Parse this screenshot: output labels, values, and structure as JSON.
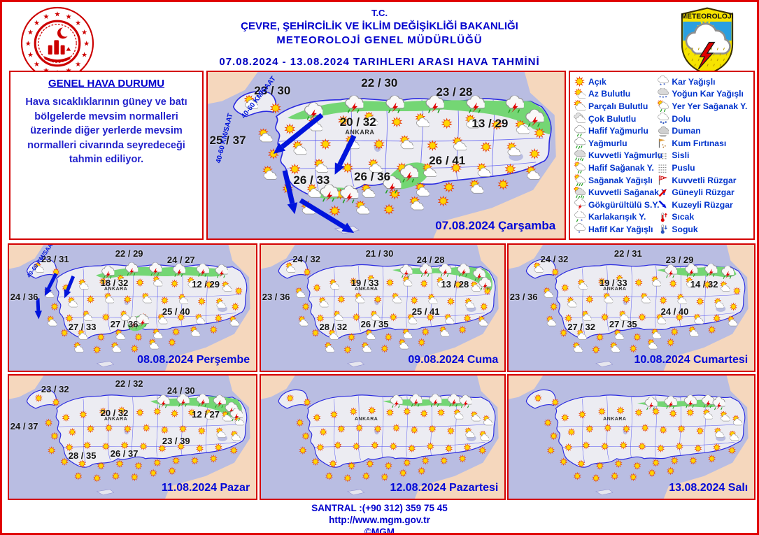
{
  "header": {
    "tc": "T.C.",
    "ministry": "ÇEVRE, ŞEHİRCİLİK VE İKLİM DEĞİŞİKLİĞİ BAKANLIĞI",
    "directorate": "METEOROLOJİ  GENEL  MÜDÜRLÜĞÜ",
    "date_title": "07.08.2024  -  13.08.2024    TARIHLERI  ARASI  HAVA  TAHMİNİ",
    "right_logo_text": "METEOROLOJİ"
  },
  "general_panel": {
    "title": "GENEL HAVA DURUMU",
    "body": "Hava sıcaklıklarının güney ve batı bölgelerde mevsim normalleri üzerinde diğer yerlerde mevsim normalleri civarında seyredeceği tahmin ediliyor."
  },
  "legend": {
    "col1": [
      {
        "icon": "sun",
        "label": "Açık"
      },
      {
        "icon": "sun-small-cloud",
        "label": "Az Bulutlu"
      },
      {
        "icon": "sun-cloud",
        "label": "Parçalı Bulutlu"
      },
      {
        "icon": "clouds",
        "label": "Çok Bulutlu"
      },
      {
        "icon": "light-rain",
        "label": "Hafif Yağmurlu"
      },
      {
        "icon": "rain",
        "label": "Yağmurlu"
      },
      {
        "icon": "heavy-rain",
        "label": "Kuvvetli Yağmurlu"
      },
      {
        "icon": "light-shower",
        "label": "Hafif Sağanak Y."
      },
      {
        "icon": "shower",
        "label": "Sağanak Yağışlı"
      },
      {
        "icon": "heavy-shower",
        "label": "Kuvvetli Sağanak Y"
      },
      {
        "icon": "thunderstorm",
        "label": "Gökgürültülü S.Y."
      },
      {
        "icon": "sleet",
        "label": "Karlakarışık Y."
      },
      {
        "icon": "light-snow",
        "label": "Hafif Kar Yağışlı"
      }
    ],
    "col2": [
      {
        "icon": "snow",
        "label": "Kar Yağışlı"
      },
      {
        "icon": "heavy-snow",
        "label": "Yoğun Kar Yağışlı"
      },
      {
        "icon": "local-shower",
        "label": "Yer Yer Sağanak Y."
      },
      {
        "icon": "hail",
        "label": "Dolu"
      },
      {
        "icon": "smoke",
        "label": "Duman"
      },
      {
        "icon": "sandstorm",
        "label": "Kum Fırtınası"
      },
      {
        "icon": "fog",
        "label": "Sisli"
      },
      {
        "icon": "haze",
        "label": "Puslu"
      },
      {
        "icon": "strong-wind",
        "label": "Kuvvetli Rüzgar"
      },
      {
        "icon": "south-wind",
        "label": "Güneyli Rüzgar"
      },
      {
        "icon": "north-wind",
        "label": "Kuzeyli Rüzgar"
      },
      {
        "icon": "hot",
        "label": "Sıcak"
      },
      {
        "icon": "cold",
        "label": "Soguk"
      }
    ]
  },
  "maps": {
    "carsamba": {
      "date_label": "07.08.2024 Çarşamba",
      "wind_label": "40-60 KM/SAAT",
      "ankara_label": "ANKARA",
      "temps": {
        "nw": "23 / 30",
        "n": "22 / 30",
        "ne": "23 / 28",
        "ankara": "20 / 32",
        "east": "13 / 29",
        "west": "25 / 37",
        "south": "26 / 33",
        "south_center": "26 / 36",
        "southeast": "26 / 41"
      }
    },
    "persembe": {
      "date_label": "08.08.2024 Perşembe",
      "wind_label": "40-60 KM/SAAT",
      "ankara_label": "ANKARA",
      "temps": {
        "nw": "23 / 31",
        "n": "22 / 29",
        "ne": "24 / 27",
        "ankara": "18 / 32",
        "east": "12 / 29",
        "west": "24 / 36",
        "south": "27 / 33",
        "south_center": "27 / 36",
        "southeast": "25 / 40"
      }
    },
    "cuma": {
      "date_label": "09.08.2024 Cuma",
      "ankara_label": "ANKARA",
      "temps": {
        "nw": "24 / 32",
        "n": "21 / 30",
        "ne": "24 / 28",
        "ankara": "19 / 33",
        "east": "13 / 28",
        "west": "23 / 36",
        "south": "28 / 32",
        "south_center": "26 / 35",
        "southeast": "25 / 41"
      }
    },
    "cumartesi": {
      "date_label": "10.08.2024 Cumartesi",
      "ankara_label": "ANKARA",
      "temps": {
        "nw": "24 / 32",
        "n": "22 / 31",
        "ne": "23 / 29",
        "ankara": "19 / 33",
        "east": "14 / 32",
        "west": "23 / 36",
        "south": "27 / 32",
        "south_center": "27 / 35",
        "southeast": "24 / 40"
      }
    },
    "pazar": {
      "date_label": "11.08.2024 Pazar",
      "ankara_label": "ANKARA",
      "temps": {
        "nw": "23 / 32",
        "n": "22 / 32",
        "ne": "24 / 30",
        "ankara": "20 / 32",
        "east": "12 / 27",
        "west": "24 / 37",
        "south": "28 / 35",
        "south_center": "26 / 37",
        "southeast": "23 / 39"
      }
    },
    "pazartesi": {
      "date_label": "12.08.2024 Pazartesi",
      "ankara_label": "ANKARA"
    },
    "sali": {
      "date_label": "13.08.2024 Salı",
      "ankara_label": "ANKARA"
    }
  },
  "footer": {
    "phone": "SANTRAL :(+90 312) 359 75 45",
    "url": "http://www.mgm.gov.tr",
    "copyright": "©MGM"
  },
  "colors": {
    "border_red": "#d40000",
    "text_blue": "#0000cd",
    "legend_blue": "#0033cc",
    "sea": "#b9bde2",
    "outside_land": "#f5d7bd",
    "turkey_fill": "#ececf2",
    "rain_band_green": "#74d674",
    "wind_arrow_blue": "#0014dc"
  }
}
